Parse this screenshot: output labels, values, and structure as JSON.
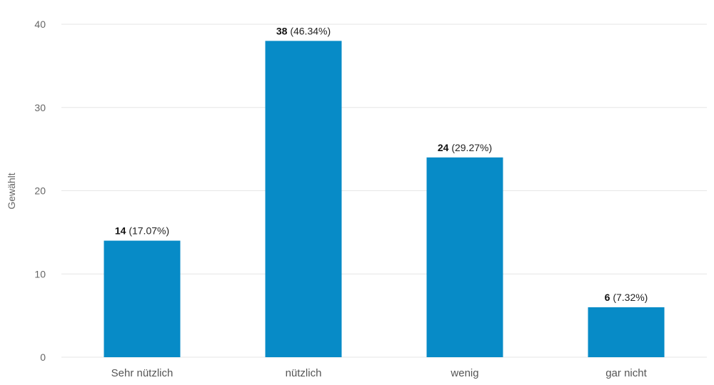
{
  "chart_data": {
    "type": "bar",
    "categories": [
      "Sehr nützlich",
      "nützlich",
      "wenig",
      "gar nicht"
    ],
    "values": [
      14,
      38,
      24,
      6
    ],
    "data_labels": [
      {
        "value": "14",
        "percent": "(17.07%)"
      },
      {
        "value": "38",
        "percent": "(46.34%)"
      },
      {
        "value": "24",
        "percent": "(29.27%)"
      },
      {
        "value": "6",
        "percent": "(7.32%)"
      }
    ],
    "title": "",
    "xlabel": "",
    "ylabel": "Gewählt",
    "ylim": [
      0,
      40
    ],
    "yticks": [
      0,
      10,
      20,
      30,
      40
    ],
    "grid": true,
    "bar_color": "#078bc7"
  }
}
